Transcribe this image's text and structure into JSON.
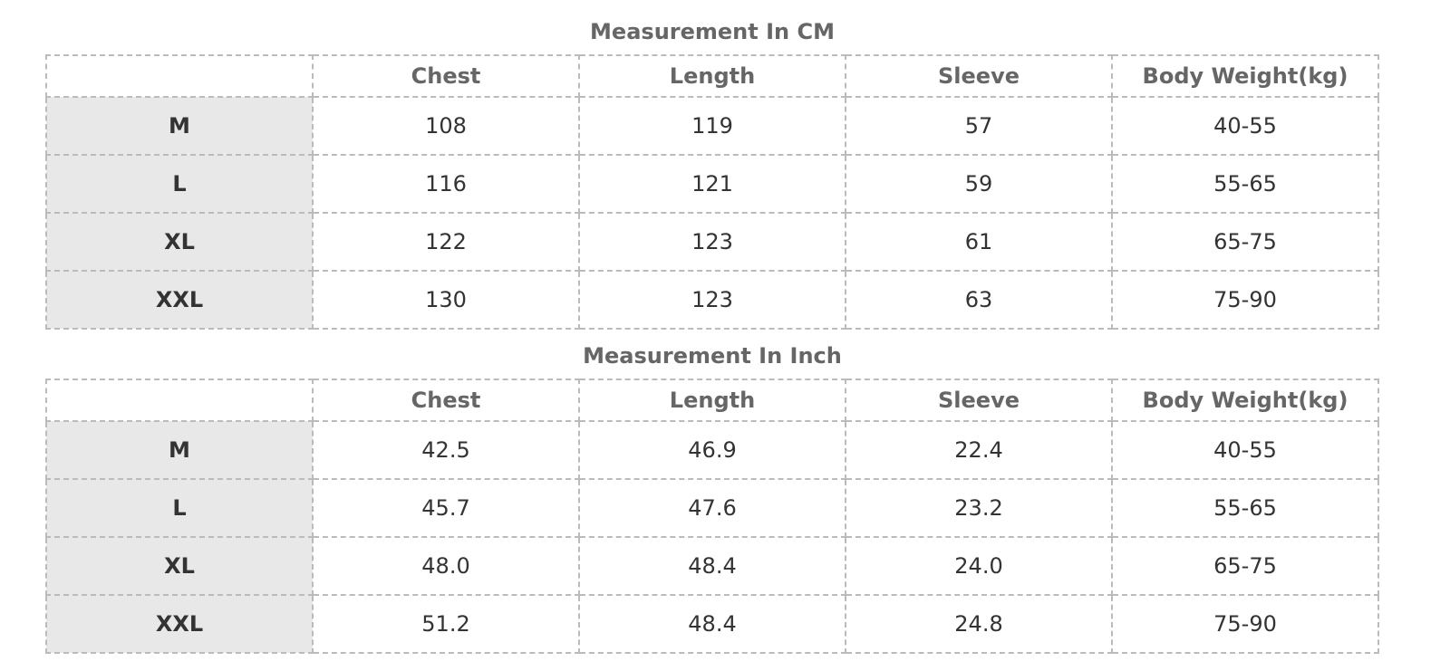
{
  "tables": [
    {
      "title": "Measurement In CM",
      "header": [
        "Chest",
        "Length",
        "Sleeve",
        "Body Weight(kg)"
      ],
      "rows": [
        [
          "M",
          "108",
          "119",
          "57",
          "40-55"
        ],
        [
          "L",
          "116",
          "121",
          "59",
          "55-65"
        ],
        [
          "XL",
          "122",
          "123",
          "61",
          "65-75"
        ],
        [
          "XXL",
          "130",
          "123",
          "63",
          "75-90"
        ]
      ]
    },
    {
      "title": "Measurement In Inch",
      "header": [
        "Chest",
        "Length",
        "Sleeve",
        "Body Weight(kg)"
      ],
      "rows": [
        [
          "M",
          "42.5",
          "46.9",
          "22.4",
          "40-55"
        ],
        [
          "L",
          "45.7",
          "47.6",
          "23.2",
          "55-65"
        ],
        [
          "XL",
          "48.0",
          "48.4",
          "24.0",
          "65-75"
        ],
        [
          "XXL",
          "51.2",
          "48.4",
          "24.8",
          "75-90"
        ]
      ]
    }
  ]
}
